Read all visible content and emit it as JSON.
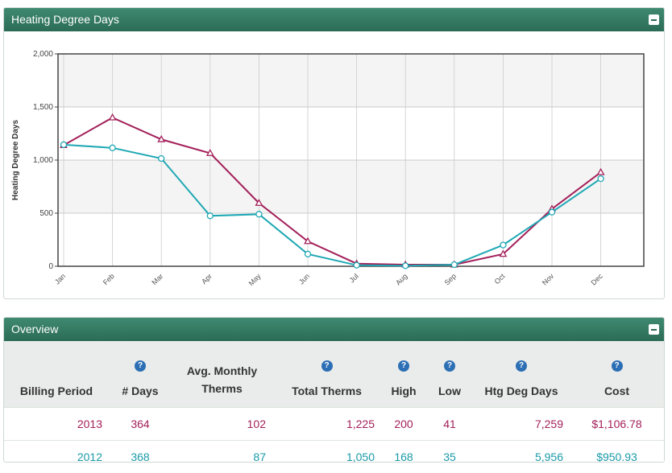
{
  "chart_panel": {
    "title": "Heating Degree Days"
  },
  "overview_panel": {
    "title": "Overview"
  },
  "chart_data": {
    "type": "line",
    "title": "",
    "xlabel": "",
    "ylabel": "Heating Degree Days",
    "categories": [
      "Jan",
      "Feb",
      "Mar",
      "Apr",
      "May",
      "Jun",
      "Jul",
      "Aug",
      "Sep",
      "Oct",
      "Nov",
      "Dec"
    ],
    "y_ticks": [
      "0",
      "500",
      "1,000",
      "1,500",
      "2,000"
    ],
    "ylim": [
      0,
      2000
    ],
    "grid": true,
    "series": [
      {
        "key": "2013",
        "color": "#a3205a",
        "marker": "triangle",
        "values": [
          1140,
          1400,
          1195,
          1065,
          595,
          235,
          25,
          15,
          15,
          115,
          540,
          885
        ]
      },
      {
        "key": "2012",
        "color": "#1fa8b4",
        "marker": "circle",
        "values": [
          1145,
          1115,
          1015,
          475,
          490,
          115,
          10,
          5,
          15,
          200,
          510,
          825
        ]
      }
    ]
  },
  "overview": {
    "headers": [
      "Billing Period",
      "# Days",
      "Avg. Monthly Therms",
      "Total Therms",
      "High",
      "Low",
      "Htg Deg Days",
      "Cost"
    ],
    "help_icon": "?",
    "rows": [
      {
        "period": "2013",
        "days": "364",
        "avg": "102",
        "total": "1,225",
        "high": "200",
        "low": "41",
        "hdd": "7,259",
        "cost": "$1,106.78"
      },
      {
        "period": "2012",
        "days": "368",
        "avg": "87",
        "total": "1,050",
        "high": "168",
        "low": "35",
        "hdd": "5,956",
        "cost": "$950.93"
      }
    ]
  }
}
